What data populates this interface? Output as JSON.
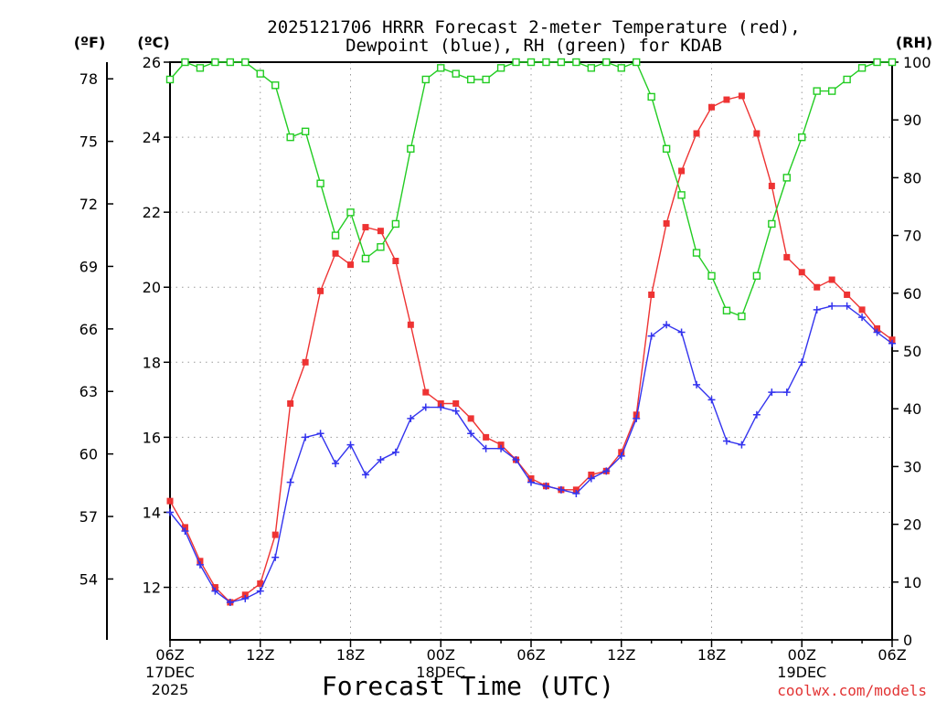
{
  "chart_data": {
    "type": "line",
    "title_line1": "2025121706 HRRR Forecast 2-meter Temperature (red),",
    "title_line2": "Dewpoint (blue), RH (green) for KDAB",
    "xlabel": "Forecast Time (UTC)",
    "axis_labels": {
      "fahrenheit": "(ºF)",
      "celsius": "(ºC)",
      "rh": "(RH)"
    },
    "watermark": "coolwx.com/models",
    "x_hours": [
      0,
      1,
      2,
      3,
      4,
      5,
      6,
      7,
      8,
      9,
      10,
      11,
      12,
      13,
      14,
      15,
      16,
      17,
      18,
      19,
      20,
      21,
      22,
      23,
      24,
      25,
      26,
      27,
      28,
      29,
      30,
      31,
      32,
      33,
      34,
      35,
      36,
      37,
      38,
      39,
      40,
      41,
      42,
      43,
      44,
      45,
      46,
      47,
      48
    ],
    "xlim": [
      0,
      48
    ],
    "x_ticks": [
      {
        "h": 0,
        "label": "06Z",
        "sub1": "17DEC",
        "sub2": "2025"
      },
      {
        "h": 6,
        "label": "12Z"
      },
      {
        "h": 12,
        "label": "18Z"
      },
      {
        "h": 18,
        "label": "00Z",
        "sub1": "18DEC"
      },
      {
        "h": 24,
        "label": "06Z"
      },
      {
        "h": 30,
        "label": "12Z"
      },
      {
        "h": 36,
        "label": "18Z"
      },
      {
        "h": 42,
        "label": "00Z",
        "sub1": "19DEC"
      },
      {
        "h": 48,
        "label": "06Z"
      }
    ],
    "celsius_axis": {
      "ylim": [
        10.6,
        26
      ],
      "ticks": [
        "12",
        "14",
        "16",
        "18",
        "20",
        "22",
        "24",
        "26"
      ]
    },
    "fahrenheit_axis": {
      "ticks": [
        "54",
        "57",
        "60",
        "63",
        "66",
        "69",
        "72",
        "75",
        "78"
      ]
    },
    "rh_axis": {
      "ylim": [
        0,
        100
      ],
      "ticks": [
        "0",
        "10",
        "20",
        "30",
        "40",
        "50",
        "60",
        "70",
        "80",
        "90",
        "100"
      ]
    },
    "series": [
      {
        "name": "Temperature",
        "units": "degC",
        "color": "#ee3333",
        "marker": "filled-square",
        "values": [
          14.3,
          13.6,
          12.7,
          12.0,
          11.6,
          11.8,
          12.1,
          13.4,
          16.9,
          18.0,
          19.9,
          20.9,
          20.6,
          21.6,
          21.5,
          20.7,
          19.0,
          17.2,
          16.9,
          16.9,
          16.5,
          16.0,
          15.8,
          15.4,
          14.9,
          14.7,
          14.6,
          14.6,
          15.0,
          15.1,
          15.6,
          16.6,
          19.8,
          21.7,
          23.1,
          24.1,
          24.8,
          25.0,
          25.1,
          24.1,
          22.7,
          20.8,
          20.4,
          20.0,
          20.2,
          19.8,
          19.4,
          18.9,
          18.6
        ]
      },
      {
        "name": "Dewpoint",
        "units": "degC",
        "color": "#3333ee",
        "marker": "plus",
        "values": [
          14.0,
          13.5,
          12.6,
          11.9,
          11.6,
          11.7,
          11.9,
          12.8,
          14.8,
          16.0,
          16.1,
          15.3,
          15.8,
          15.0,
          15.4,
          15.6,
          16.5,
          16.8,
          16.8,
          16.7,
          16.1,
          15.7,
          15.7,
          15.4,
          14.8,
          14.7,
          14.6,
          14.5,
          14.9,
          15.1,
          15.5,
          16.5,
          18.7,
          19.0,
          18.8,
          17.4,
          17.0,
          15.9,
          15.8,
          16.6,
          17.2,
          17.2,
          18.0,
          19.4,
          19.5,
          19.5,
          19.2,
          18.8,
          18.5
        ]
      },
      {
        "name": "RH",
        "units": "%",
        "color": "#22cc22",
        "marker": "open-square",
        "values": [
          97,
          100,
          99,
          100,
          100,
          100,
          98,
          96,
          87,
          88,
          79,
          70,
          74,
          66,
          68,
          72,
          85,
          97,
          99,
          98,
          97,
          97,
          99,
          100,
          100,
          100,
          100,
          100,
          99,
          100,
          99,
          100,
          94,
          85,
          77,
          67,
          63,
          57,
          56,
          63,
          72,
          80,
          87,
          95,
          95,
          97,
          99,
          100,
          100
        ]
      }
    ]
  }
}
